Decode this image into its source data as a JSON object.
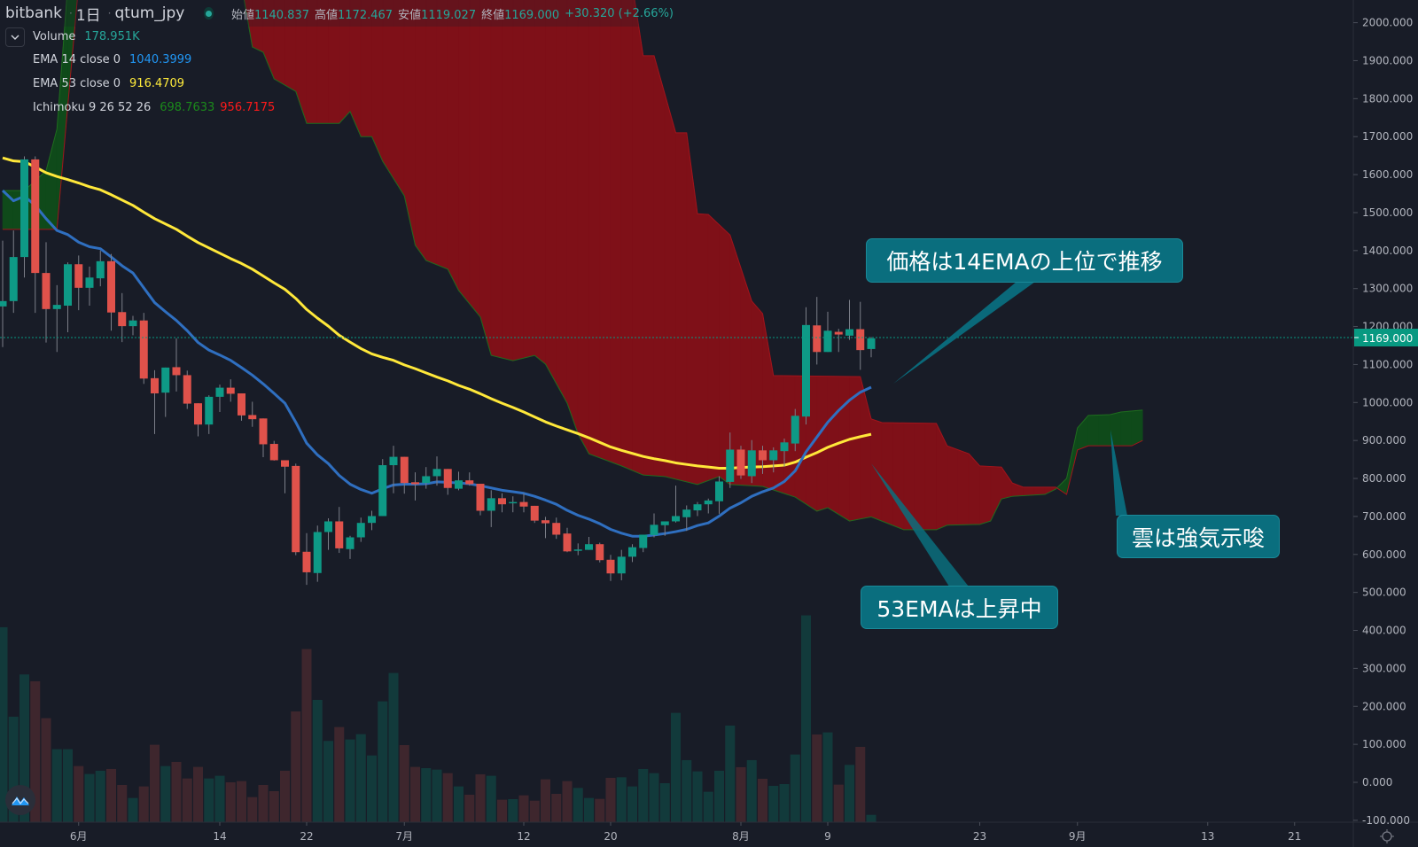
{
  "legend": {
    "exchange": "bitbank",
    "interval": "1日",
    "symbol": "qtum_jpy",
    "ohlc": [
      {
        "label": "始値",
        "value": "1140.837"
      },
      {
        "label": "高値",
        "value": "1172.467"
      },
      {
        "label": "安値",
        "value": "1119.027"
      },
      {
        "label": "終値",
        "value": "1169.000"
      }
    ],
    "change": "+30.320 (+2.66%)",
    "indicators": [
      {
        "name": "Volume",
        "values": [
          "178.951K"
        ],
        "colors": [
          "#26a69a"
        ]
      },
      {
        "name": "EMA 14 close 0",
        "values": [
          "1040.3999"
        ],
        "colors": [
          "#2196f3"
        ]
      },
      {
        "name": "EMA 53 close 0",
        "values": [
          "916.4709"
        ],
        "colors": [
          "#ffeb3b"
        ]
      },
      {
        "name": "Ichimoku 9 26 52 26",
        "values": [
          "698.7633",
          "956.7175"
        ],
        "colors": [
          "#1b8a1b",
          "#ff1a1a"
        ]
      }
    ]
  },
  "annotations": [
    {
      "text": "価格は14EMAの上位で推移"
    },
    {
      "text": "53EMAは上昇中"
    },
    {
      "text": "雲は強気示唆"
    }
  ],
  "price_axis": {
    "ticks": [
      "2000.000",
      "1900.000",
      "1800.000",
      "1700.000",
      "1600.000",
      "1500.000",
      "1400.000",
      "1300.000",
      "1200.000",
      "1100.000",
      "1000.000",
      "900.000",
      "800.000",
      "700.000",
      "600.000",
      "500.000",
      "400.000",
      "300.000",
      "200.000",
      "100.000",
      "0.000",
      "-100.000"
    ],
    "last_price": "1169.000"
  },
  "colors": {
    "background": "#181c27",
    "up": "#0e9a86",
    "down": "#e0524b",
    "ema14": "#2f6fc0",
    "ema53": "#ffe83a",
    "cloud_bear": "#7f1018",
    "cloud_bull": "#0f4a1a",
    "last_price": "#089981"
  },
  "chart_data": {
    "type": "candlestick",
    "yaxis": {
      "range": [
        -100,
        2000
      ]
    },
    "x_ticks": [
      {
        "label": "6月",
        "date": "6/1"
      },
      {
        "label": "14",
        "date": "6/14"
      },
      {
        "label": "22",
        "date": "6/22"
      },
      {
        "label": "7月",
        "date": "7/1"
      },
      {
        "label": "12",
        "date": "7/12"
      },
      {
        "label": "20",
        "date": "7/20"
      },
      {
        "label": "8月",
        "date": "8/1"
      },
      {
        "label": "9",
        "date": "8/9"
      },
      {
        "label": "23",
        "date": "8/23"
      },
      {
        "label": "9月",
        "date": "9/1"
      },
      {
        "label": "13",
        "date": "9/13"
      },
      {
        "label": "21",
        "date": "9/21"
      }
    ],
    "candles_columns": [
      "date",
      "open",
      "high",
      "low",
      "close"
    ],
    "candles": [
      [
        "5/25",
        1253,
        1426,
        1146,
        1267
      ],
      [
        "5/26",
        1267,
        1453,
        1236,
        1383
      ],
      [
        "5/27",
        1383,
        1648,
        1329,
        1640
      ],
      [
        "5/28",
        1640,
        1648,
        1236,
        1341
      ],
      [
        "5/29",
        1341,
        1422,
        1158,
        1246
      ],
      [
        "5/30",
        1246,
        1309,
        1133,
        1257
      ],
      [
        "5/31",
        1255,
        1369,
        1185,
        1364
      ],
      [
        "6/1",
        1364,
        1387,
        1243,
        1302
      ],
      [
        "6/2",
        1302,
        1358,
        1255,
        1329
      ],
      [
        "6/3",
        1327,
        1400,
        1306,
        1372
      ],
      [
        "6/4",
        1372,
        1391,
        1189,
        1237
      ],
      [
        "6/5",
        1238,
        1288,
        1159,
        1201
      ],
      [
        "6/6",
        1201,
        1228,
        1177,
        1216
      ],
      [
        "6/7",
        1216,
        1236,
        1049,
        1063
      ],
      [
        "6/8",
        1064,
        1085,
        917,
        1024
      ],
      [
        "6/9",
        1026,
        1092,
        962,
        1092
      ],
      [
        "6/10",
        1093,
        1169,
        1029,
        1072
      ],
      [
        "6/11",
        1072,
        1084,
        983,
        997
      ],
      [
        "6/12",
        998,
        998,
        911,
        942
      ],
      [
        "6/13",
        942,
        1019,
        917,
        1015
      ],
      [
        "6/14",
        1015,
        1047,
        975,
        1039
      ],
      [
        "6/15",
        1039,
        1061,
        1002,
        1023
      ],
      [
        "6/16",
        1024,
        1024,
        952,
        966
      ],
      [
        "6/17",
        967,
        1002,
        936,
        956
      ],
      [
        "6/18",
        958,
        958,
        856,
        890
      ],
      [
        "6/19",
        891,
        899,
        847,
        848
      ],
      [
        "6/20",
        848,
        848,
        761,
        831
      ],
      [
        "6/21",
        833,
        839,
        598,
        606
      ],
      [
        "6/22",
        607,
        656,
        520,
        553
      ],
      [
        "6/23",
        551,
        676,
        528,
        659
      ],
      [
        "6/24",
        659,
        695,
        612,
        687
      ],
      [
        "6/25",
        687,
        725,
        604,
        616
      ],
      [
        "6/26",
        614,
        649,
        588,
        645
      ],
      [
        "6/27",
        645,
        697,
        633,
        683
      ],
      [
        "6/28",
        683,
        715,
        664,
        701
      ],
      [
        "6/29",
        701,
        851,
        701,
        835
      ],
      [
        "6/30",
        835,
        886,
        761,
        857
      ],
      [
        "7/1",
        857,
        857,
        760,
        788
      ],
      [
        "7/2",
        790,
        816,
        742,
        785
      ],
      [
        "7/3",
        788,
        830,
        773,
        806
      ],
      [
        "7/4",
        806,
        858,
        781,
        825
      ],
      [
        "7/5",
        825,
        825,
        757,
        775
      ],
      [
        "7/6",
        773,
        818,
        769,
        795
      ],
      [
        "7/7",
        795,
        816,
        781,
        785
      ],
      [
        "7/8",
        786,
        786,
        703,
        715
      ],
      [
        "7/9",
        715,
        769,
        672,
        748
      ],
      [
        "7/10",
        748,
        761,
        711,
        732
      ],
      [
        "7/11",
        736,
        753,
        711,
        738
      ],
      [
        "7/12",
        738,
        761,
        711,
        726
      ],
      [
        "7/13",
        728,
        728,
        683,
        689
      ],
      [
        "7/14",
        690,
        699,
        643,
        682
      ],
      [
        "7/15",
        683,
        697,
        641,
        652
      ],
      [
        "7/16",
        655,
        670,
        606,
        608
      ],
      [
        "7/17",
        612,
        629,
        598,
        613
      ],
      [
        "7/18",
        612,
        646,
        612,
        627
      ],
      [
        "7/19",
        627,
        631,
        579,
        585
      ],
      [
        "7/20",
        586,
        599,
        530,
        550
      ],
      [
        "7/21",
        550,
        612,
        532,
        594
      ],
      [
        "7/22",
        594,
        627,
        580,
        619
      ],
      [
        "7/23",
        617,
        652,
        606,
        652
      ],
      [
        "7/24",
        651,
        708,
        645,
        678
      ],
      [
        "7/25",
        677,
        687,
        649,
        687
      ],
      [
        "7/26",
        687,
        781,
        684,
        701
      ],
      [
        "7/27",
        698,
        729,
        662,
        718
      ],
      [
        "7/28",
        716,
        738,
        701,
        732
      ],
      [
        "7/29",
        732,
        747,
        708,
        742
      ],
      [
        "7/30",
        740,
        806,
        707,
        792
      ],
      [
        "7/31",
        791,
        921,
        775,
        876
      ],
      [
        "8/1",
        876,
        886,
        799,
        808
      ],
      [
        "8/2",
        806,
        901,
        788,
        874
      ],
      [
        "8/3",
        874,
        886,
        812,
        848
      ],
      [
        "8/4",
        848,
        882,
        816,
        874
      ],
      [
        "8/5",
        872,
        905,
        831,
        895
      ],
      [
        "8/6",
        892,
        983,
        872,
        965
      ],
      [
        "8/7",
        963,
        1251,
        942,
        1204
      ],
      [
        "8/8",
        1203,
        1278,
        1100,
        1133
      ],
      [
        "8/9",
        1133,
        1239,
        1133,
        1189
      ],
      [
        "8/10",
        1186,
        1194,
        1133,
        1179
      ],
      [
        "8/11",
        1176,
        1270,
        1165,
        1193
      ],
      [
        "8/12",
        1193,
        1265,
        1086,
        1138
      ],
      [
        "8/13",
        1140.837,
        1172.467,
        1119.027,
        1169.0
      ]
    ],
    "volume": [
      4732000,
      2560000,
      3585000,
      3420000,
      2524000,
      1771000,
      1771000,
      1362000,
      1169000,
      1248000,
      1291000,
      903000,
      588000,
      868000,
      1879000,
      1362000,
      1463000,
      1061000,
      1341000,
      1061000,
      1126000,
      968000,
      997000,
      609000,
      903000,
      753000,
      1248000,
      2689000,
      4202000,
      2968000,
      1972000,
      2309000,
      2008000,
      2137000,
      1620000,
      2933000,
      3621000,
      1871000,
      1341000,
      1312000,
      1276000,
      1190000,
      868000,
      667000,
      1162000,
      1126000,
      545000,
      559000,
      652000,
      523000,
      1040000,
      688000,
      997000,
      832000,
      588000,
      566000,
      1076000,
      1090000,
      868000,
      1291000,
      1190000,
      946000,
      2653000,
      1506000,
      1233000,
      739000,
      1248000,
      2345000,
      1334000,
      1506000,
      1054000,
      882000,
      925000,
      1642000,
      5019000,
      2129000,
      2180000,
      911000,
      1391000,
      1828000,
      178951
    ],
    "ema14": [
      1558,
      1531,
      1543,
      1519,
      1484,
      1453,
      1442,
      1422,
      1410,
      1405,
      1383,
      1360,
      1341,
      1302,
      1263,
      1239,
      1216,
      1189,
      1158,
      1138,
      1125,
      1111,
      1092,
      1072,
      1049,
      1024,
      998,
      948,
      893,
      862,
      839,
      808,
      785,
      771,
      761,
      773,
      783,
      785,
      785,
      786,
      791,
      790,
      788,
      786,
      781,
      775,
      769,
      765,
      761,
      753,
      743,
      732,
      716,
      703,
      693,
      681,
      666,
      656,
      648,
      648,
      651,
      655,
      660,
      666,
      676,
      683,
      701,
      722,
      736,
      753,
      765,
      775,
      792,
      820,
      870,
      909,
      948,
      979,
      1006,
      1027,
      1040.3999
    ],
    "ema53": [
      1644,
      1636,
      1634,
      1620,
      1605,
      1595,
      1587,
      1578,
      1568,
      1560,
      1547,
      1533,
      1519,
      1501,
      1484,
      1470,
      1456,
      1438,
      1421,
      1407,
      1393,
      1379,
      1366,
      1351,
      1333,
      1315,
      1298,
      1274,
      1245,
      1222,
      1201,
      1177,
      1159,
      1142,
      1128,
      1119,
      1111,
      1099,
      1089,
      1078,
      1067,
      1057,
      1045,
      1035,
      1023,
      1010,
      998,
      987,
      975,
      962,
      949,
      938,
      928,
      918,
      907,
      895,
      883,
      874,
      866,
      858,
      852,
      847,
      841,
      837,
      833,
      830,
      827,
      827,
      829,
      830,
      831,
      833,
      835,
      843,
      856,
      868,
      882,
      893,
      903,
      910,
      916.4709
    ],
    "ichimoku_span_a": [
      [
        "5/25",
        1558
      ],
      [
        "5/27",
        1558
      ],
      [
        "5/29",
        1610
      ],
      [
        "5/30",
        1720
      ],
      [
        "5/31",
        2100
      ],
      [
        "6/16",
        2100
      ],
      [
        "6/17",
        1936
      ],
      [
        "6/18",
        1922
      ],
      [
        "6/19",
        1852
      ],
      [
        "6/21",
        1819
      ],
      [
        "6/22",
        1735
      ],
      [
        "6/25",
        1735
      ],
      [
        "6/26",
        1766
      ],
      [
        "6/27",
        1700
      ],
      [
        "6/28",
        1700
      ],
      [
        "6/29",
        1635
      ],
      [
        "7/1",
        1544
      ],
      [
        "7/2",
        1414
      ],
      [
        "7/3",
        1374
      ],
      [
        "7/5",
        1351
      ],
      [
        "7/6",
        1295
      ],
      [
        "7/8",
        1225
      ],
      [
        "7/9",
        1124
      ],
      [
        "7/11",
        1110
      ],
      [
        "7/13",
        1124
      ],
      [
        "7/14",
        1101
      ],
      [
        "7/16",
        998
      ],
      [
        "7/17",
        917
      ],
      [
        "7/18",
        865
      ],
      [
        "7/21",
        833
      ],
      [
        "7/23",
        809
      ],
      [
        "7/25",
        805
      ],
      [
        "7/28",
        784
      ],
      [
        "7/30",
        805
      ],
      [
        "7/31",
        784
      ],
      [
        "8/3",
        779
      ],
      [
        "8/6",
        751
      ],
      [
        "8/8",
        714
      ],
      [
        "8/9",
        723
      ],
      [
        "8/11",
        688
      ],
      [
        "8/13",
        698.7633
      ],
      [
        "8/16",
        665
      ],
      [
        "8/19",
        665
      ],
      [
        "8/20",
        677
      ],
      [
        "8/23",
        679
      ],
      [
        "8/24",
        688
      ],
      [
        "8/25",
        746
      ],
      [
        "8/26",
        753
      ],
      [
        "8/29",
        758
      ],
      [
        "8/30",
        772
      ],
      [
        "8/31",
        800
      ],
      [
        "9/1",
        933
      ],
      [
        "9/2",
        966
      ],
      [
        "9/4",
        968
      ],
      [
        "9/5",
        975
      ],
      [
        "9/7",
        980
      ]
    ],
    "ichimoku_span_b": [
      [
        "5/25",
        1456
      ],
      [
        "5/30",
        1456
      ],
      [
        "5/31",
        1782
      ],
      [
        "6/1",
        2100
      ],
      [
        "7/22",
        2100
      ],
      [
        "7/23",
        1913
      ],
      [
        "7/24",
        1913
      ],
      [
        "7/26",
        1710
      ],
      [
        "7/27",
        1710
      ],
      [
        "7/28",
        1497
      ],
      [
        "7/29",
        1495
      ],
      [
        "7/31",
        1441
      ],
      [
        "8/2",
        1267
      ],
      [
        "8/3",
        1234
      ],
      [
        "8/4",
        1071
      ],
      [
        "8/12",
        1068
      ],
      [
        "8/13",
        956.7175
      ],
      [
        "8/14",
        947
      ],
      [
        "8/19",
        945
      ],
      [
        "8/20",
        886
      ],
      [
        "8/22",
        865
      ],
      [
        "8/23",
        833
      ],
      [
        "8/25",
        830
      ],
      [
        "8/26",
        788
      ],
      [
        "8/27",
        777
      ],
      [
        "8/30",
        777
      ],
      [
        "8/31",
        758
      ],
      [
        "9/1",
        875
      ],
      [
        "9/2",
        886
      ],
      [
        "9/6",
        886
      ],
      [
        "9/7",
        900
      ]
    ]
  }
}
